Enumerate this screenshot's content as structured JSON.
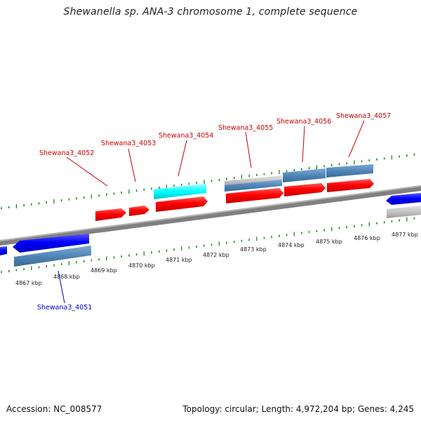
{
  "title": "Shewanella sp. ANA-3 chromosome 1, complete sequence",
  "footer": {
    "accession": "Accession: NC_008577",
    "topology": "Topology: circular; Length: 4,972,204 bp; Genes: 4,245"
  },
  "tick_labels": [
    "4867 kbp",
    "4868 kbp",
    "4869 kbp",
    "4870 kbp",
    "4871 kbp",
    "4872 kbp",
    "4873 kbp",
    "4874 kbp",
    "4875 kbp",
    "4876 kbp",
    "4877 kbp"
  ],
  "gene_labels": {
    "g4051": "Shewana3_4051",
    "g4052": "Shewana3_4052",
    "g4053": "Shewana3_4053",
    "g4054": "Shewana3_4054",
    "g4055": "Shewana3_4055",
    "g4056": "Shewana3_4056",
    "g4057": "Shewana3_4057"
  },
  "colors": {
    "forward_cds": "#ff0000",
    "reverse_cds": "#0000ff",
    "feature_steel": "#4f86b8",
    "feature_cyan": "#00ffff",
    "feature_gray": "#c4c4c4",
    "tick_mark": "#1e8a1e",
    "backbone": "#808080",
    "forward_label": "#cc0000",
    "reverse_label": "#0000cc"
  }
}
